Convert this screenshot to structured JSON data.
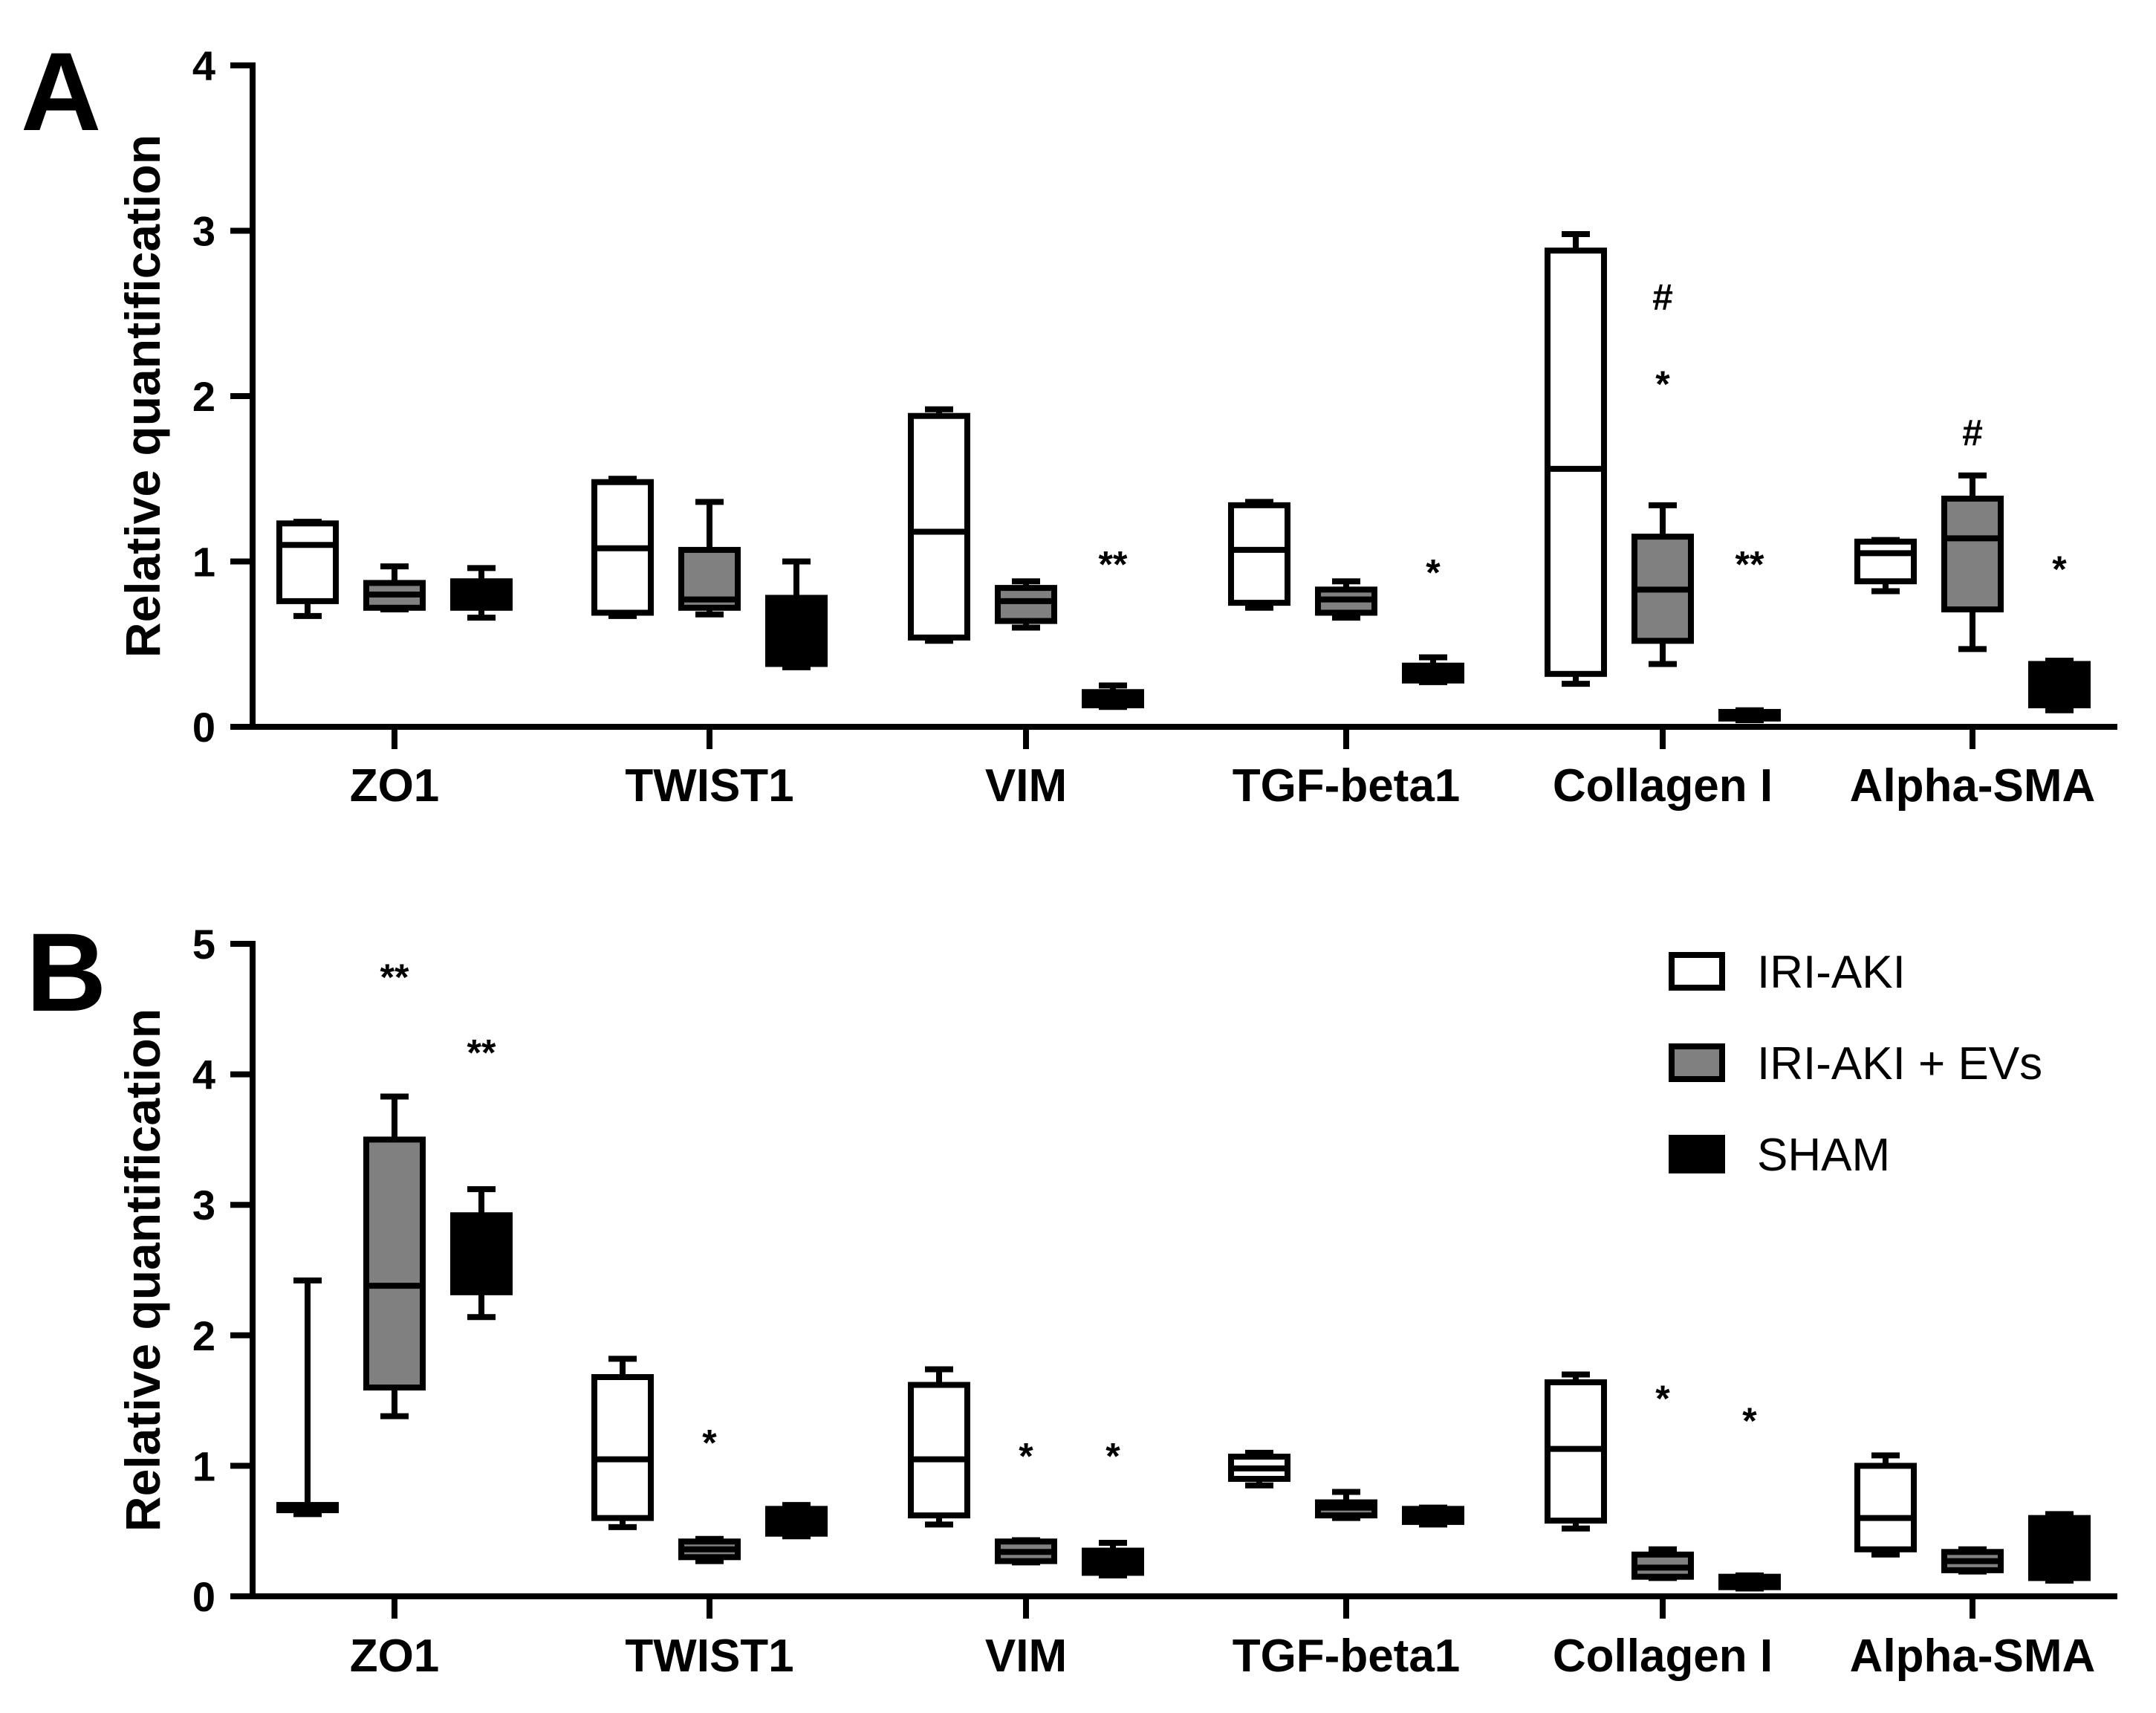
{
  "chart_data": [
    {
      "type": "boxplot",
      "panel": "A",
      "ylabel": "Relative quantification",
      "ylim": [
        0,
        4
      ],
      "yticks": [
        0,
        1,
        2,
        3,
        4
      ],
      "categories": [
        "ZO1",
        "TWIST1",
        "VIM",
        "TGF-beta1",
        "Collagen I",
        "Alpha-SMA"
      ],
      "series": [
        {
          "name": "IRI-AKI",
          "boxes": [
            {
              "min": 0.67,
              "q1": 0.76,
              "median": 1.1,
              "q3": 1.23,
              "max": 1.24
            },
            {
              "min": 0.67,
              "q1": 0.69,
              "median": 1.08,
              "q3": 1.48,
              "max": 1.5
            },
            {
              "min": 0.52,
              "q1": 0.54,
              "median": 1.18,
              "q3": 1.88,
              "max": 1.92
            },
            {
              "min": 0.72,
              "q1": 0.75,
              "median": 1.07,
              "q3": 1.34,
              "max": 1.36
            },
            {
              "min": 0.26,
              "q1": 0.32,
              "median": 1.56,
              "q3": 2.88,
              "max": 2.98
            },
            {
              "min": 0.82,
              "q1": 0.88,
              "median": 1.05,
              "q3": 1.12,
              "max": 1.13
            }
          ]
        },
        {
          "name": "IRI-AKI + EVs",
          "boxes": [
            {
              "min": 0.71,
              "q1": 0.72,
              "median": 0.8,
              "q3": 0.87,
              "max": 0.97
            },
            {
              "min": 0.68,
              "q1": 0.72,
              "median": 0.77,
              "q3": 1.07,
              "max": 1.36
            },
            {
              "min": 0.6,
              "q1": 0.64,
              "median": 0.76,
              "q3": 0.84,
              "max": 0.88
            },
            {
              "min": 0.66,
              "q1": 0.69,
              "median": 0.77,
              "q3": 0.83,
              "max": 0.88
            },
            {
              "min": 0.38,
              "q1": 0.52,
              "median": 0.83,
              "q3": 1.15,
              "max": 1.34
            },
            {
              "min": 0.47,
              "q1": 0.71,
              "median": 1.14,
              "q3": 1.38,
              "max": 1.52
            }
          ]
        },
        {
          "name": "SHAM",
          "boxes": [
            {
              "min": 0.66,
              "q1": 0.72,
              "median": 0.8,
              "q3": 0.88,
              "max": 0.96
            },
            {
              "min": 0.36,
              "q1": 0.38,
              "median": 0.6,
              "q3": 0.78,
              "max": 1.0
            },
            {
              "min": 0.12,
              "q1": 0.13,
              "median": 0.17,
              "q3": 0.21,
              "max": 0.25
            },
            {
              "min": 0.27,
              "q1": 0.28,
              "median": 0.32,
              "q3": 0.37,
              "max": 0.42
            },
            {
              "min": 0.04,
              "q1": 0.05,
              "median": 0.07,
              "q3": 0.09,
              "max": 0.1
            },
            {
              "min": 0.1,
              "q1": 0.13,
              "median": 0.26,
              "q3": 0.38,
              "max": 0.4
            }
          ]
        }
      ],
      "annotations": [
        {
          "text": "**",
          "category": "VIM",
          "series": "SHAM",
          "y": 1.05
        },
        {
          "text": "*",
          "category": "TGF-beta1",
          "series": "SHAM",
          "y": 1.0
        },
        {
          "text": "#",
          "category": "Collagen I",
          "series": "IRI-AKI + EVs",
          "y": 2.62
        },
        {
          "text": "*",
          "category": "Collagen I",
          "series": "IRI-AKI + EVs",
          "y": 2.14
        },
        {
          "text": "**",
          "category": "Collagen I",
          "series": "SHAM",
          "y": 1.05
        },
        {
          "text": "#",
          "category": "Alpha-SMA",
          "series": "IRI-AKI + EVs",
          "y": 1.8
        },
        {
          "text": "*",
          "category": "Alpha-SMA",
          "series": "SHAM",
          "y": 1.02
        }
      ]
    },
    {
      "type": "boxplot",
      "panel": "B",
      "ylabel": "Relative quantification",
      "ylim": [
        0,
        5
      ],
      "yticks": [
        0,
        1,
        2,
        3,
        4,
        5
      ],
      "categories": [
        "ZO1",
        "TWIST1",
        "VIM",
        "TGF-beta1",
        "Collagen I",
        "Alpha-SMA"
      ],
      "series": [
        {
          "name": "IRI-AKI",
          "boxes": [
            {
              "min": 0.63,
              "q1": 0.66,
              "median": 0.68,
              "q3": 0.7,
              "max": 2.42
            },
            {
              "min": 0.53,
              "q1": 0.6,
              "median": 1.05,
              "q3": 1.68,
              "max": 1.82
            },
            {
              "min": 0.55,
              "q1": 0.62,
              "median": 1.05,
              "q3": 1.62,
              "max": 1.74
            },
            {
              "min": 0.85,
              "q1": 0.9,
              "median": 0.98,
              "q3": 1.07,
              "max": 1.1
            },
            {
              "min": 0.52,
              "q1": 0.58,
              "median": 1.13,
              "q3": 1.64,
              "max": 1.7
            },
            {
              "min": 0.32,
              "q1": 0.36,
              "median": 0.6,
              "q3": 1.0,
              "max": 1.08
            }
          ]
        },
        {
          "name": "IRI-AKI + EVs",
          "boxes": [
            {
              "min": 1.38,
              "q1": 1.6,
              "median": 2.38,
              "q3": 3.5,
              "max": 3.83
            },
            {
              "min": 0.27,
              "q1": 0.3,
              "median": 0.36,
              "q3": 0.42,
              "max": 0.44
            },
            {
              "min": 0.26,
              "q1": 0.27,
              "median": 0.34,
              "q3": 0.42,
              "max": 0.43
            },
            {
              "min": 0.6,
              "q1": 0.62,
              "median": 0.68,
              "q3": 0.72,
              "max": 0.8
            },
            {
              "min": 0.14,
              "q1": 0.15,
              "median": 0.22,
              "q3": 0.32,
              "max": 0.36
            },
            {
              "min": 0.19,
              "q1": 0.2,
              "median": 0.27,
              "q3": 0.34,
              "max": 0.36
            }
          ]
        },
        {
          "name": "SHAM",
          "boxes": [
            {
              "min": 2.14,
              "q1": 2.33,
              "median": 2.62,
              "q3": 2.92,
              "max": 3.12
            },
            {
              "min": 0.46,
              "q1": 0.48,
              "median": 0.57,
              "q3": 0.67,
              "max": 0.7
            },
            {
              "min": 0.16,
              "q1": 0.18,
              "median": 0.27,
              "q3": 0.35,
              "max": 0.41
            },
            {
              "min": 0.55,
              "q1": 0.57,
              "median": 0.62,
              "q3": 0.67,
              "max": 0.68
            },
            {
              "min": 0.06,
              "q1": 0.07,
              "median": 0.11,
              "q3": 0.15,
              "max": 0.16
            },
            {
              "min": 0.12,
              "q1": 0.14,
              "median": 0.38,
              "q3": 0.6,
              "max": 0.63
            }
          ]
        }
      ],
      "annotations": [
        {
          "text": "**",
          "category": "ZO1",
          "series": "IRI-AKI + EVs",
          "y": 4.83
        },
        {
          "text": "**",
          "category": "ZO1",
          "series": "SHAM",
          "y": 4.25
        },
        {
          "text": "*",
          "category": "TWIST1",
          "series": "IRI-AKI + EVs",
          "y": 1.26
        },
        {
          "text": "*",
          "category": "VIM",
          "series": "IRI-AKI + EVs",
          "y": 1.16
        },
        {
          "text": "*",
          "category": "VIM",
          "series": "SHAM",
          "y": 1.16
        },
        {
          "text": "*",
          "category": "Collagen I",
          "series": "IRI-AKI + EVs",
          "y": 1.6
        },
        {
          "text": "*",
          "category": "Collagen I",
          "series": "SHAM",
          "y": 1.43
        }
      ]
    }
  ],
  "legend": {
    "items": [
      {
        "label": "IRI-AKI",
        "fill": "#ffffff"
      },
      {
        "label": "IRI-AKI + EVs",
        "fill": "#808080"
      },
      {
        "label": "SHAM",
        "fill": "#000000"
      }
    ]
  }
}
